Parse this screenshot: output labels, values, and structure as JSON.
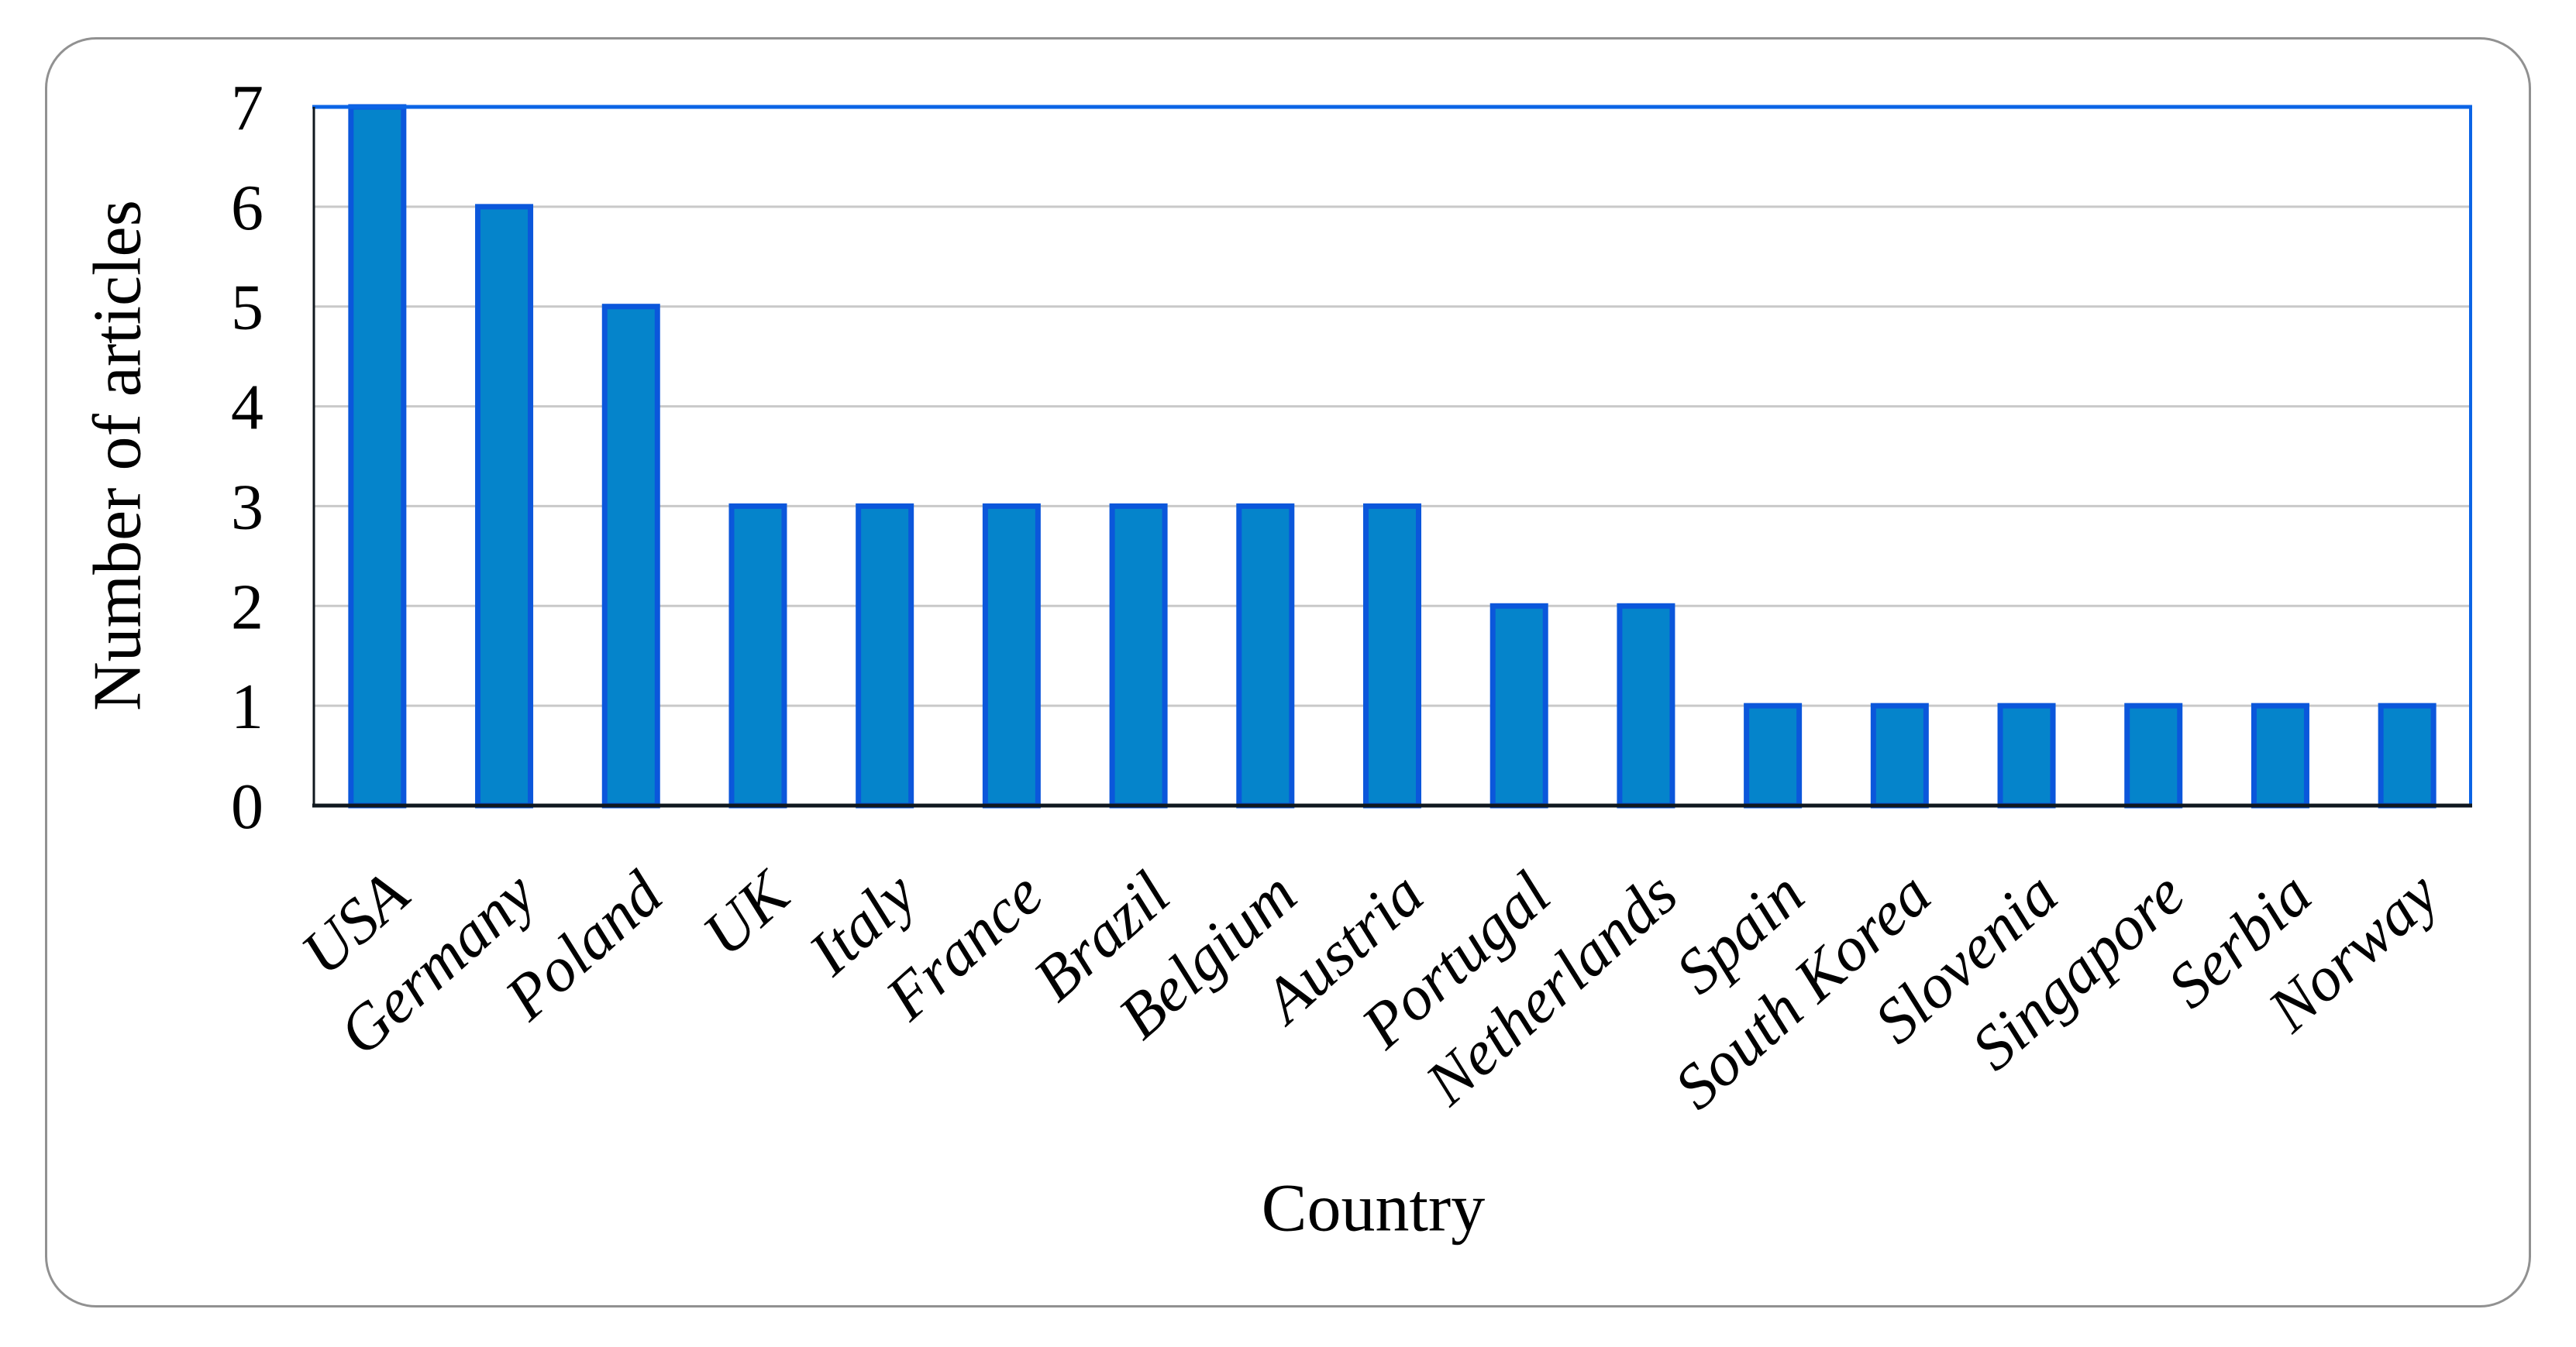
{
  "figure": {
    "background": "#ffffff",
    "card_border_color": "#919191"
  },
  "chart_data": {
    "type": "bar",
    "title": "",
    "xlabel": "Country",
    "ylabel": "Number of articles",
    "categories": [
      "USA",
      "Germany",
      "Poland",
      "UK",
      "Italy",
      "France",
      "Brazil",
      "Belgium",
      "Austria",
      "Portugal",
      "Netherlands",
      "Spain",
      "South Korea",
      "Slovenia",
      "Singapore",
      "Serbia",
      "Norway"
    ],
    "values": [
      7,
      6,
      5,
      3,
      3,
      3,
      3,
      3,
      3,
      2,
      2,
      1,
      1,
      1,
      1,
      1,
      1
    ],
    "y_ticks": [
      0,
      1,
      2,
      3,
      4,
      5,
      6,
      7
    ],
    "ylim": [
      0,
      7
    ],
    "grid": true,
    "legend": "none",
    "bar_fill": "#0584CB",
    "bar_stroke": "#0B57DB",
    "plot_border_color": "#0B64E6",
    "axis_color": "#10181F",
    "gridline_color": "#C9C9C9",
    "tick_label_color": "#000000"
  }
}
